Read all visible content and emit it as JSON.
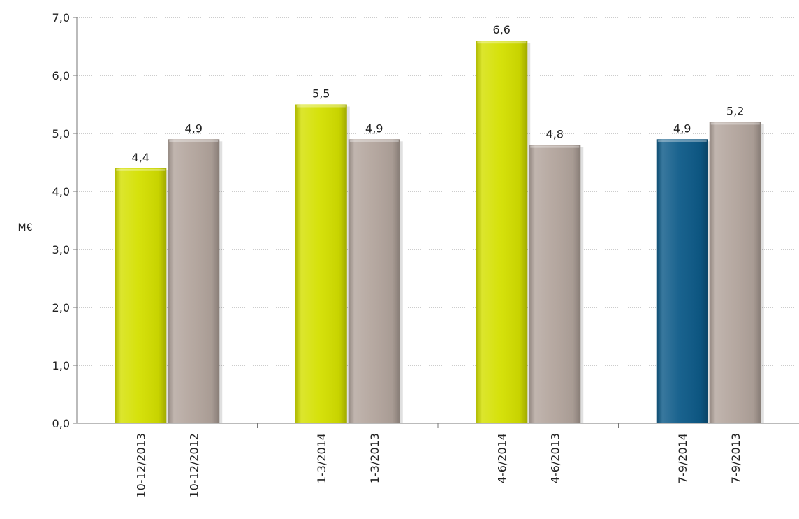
{
  "chart_data": {
    "type": "bar",
    "ylabel": "M€",
    "ylim": [
      0,
      7
    ],
    "y_ticks": [
      "0,0",
      "1,0",
      "2,0",
      "3,0",
      "4,0",
      "5,0",
      "6,0",
      "7,0"
    ],
    "grid": true,
    "groups": [
      {
        "bars": [
          {
            "label": "10-12/2013",
            "value": 4.4,
            "value_label": "4,4",
            "color": "#d4e000"
          },
          {
            "label": "10-12/2012",
            "value": 4.9,
            "value_label": "4,9",
            "color": "#b3a59d"
          }
        ]
      },
      {
        "bars": [
          {
            "label": "1-3/2014",
            "value": 5.5,
            "value_label": "5,5",
            "color": "#d4e000"
          },
          {
            "label": "1-3/2013",
            "value": 4.9,
            "value_label": "4,9",
            "color": "#b3a59d"
          }
        ]
      },
      {
        "bars": [
          {
            "label": "4-6/2014",
            "value": 6.6,
            "value_label": "6,6",
            "color": "#d4e000"
          },
          {
            "label": "4-6/2013",
            "value": 4.8,
            "value_label": "4,8",
            "color": "#b3a59d"
          }
        ]
      },
      {
        "bars": [
          {
            "label": "7-9/2014",
            "value": 4.9,
            "value_label": "4,9",
            "color": "#0d5a88"
          },
          {
            "label": "7-9/2013",
            "value": 5.2,
            "value_label": "5,2",
            "color": "#b3a59d"
          }
        ]
      }
    ]
  }
}
